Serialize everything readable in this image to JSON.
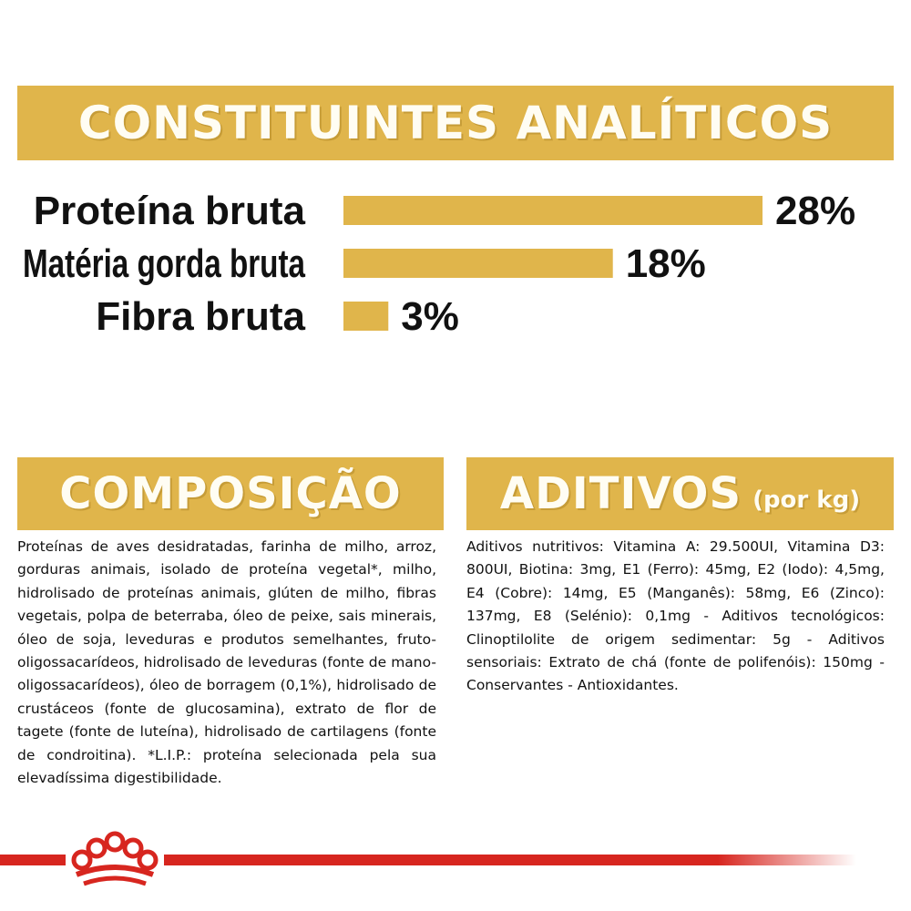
{
  "analytical": {
    "title": "CONSTITUINTES ANALÍTICOS"
  },
  "chart_data": {
    "type": "bar",
    "orientation": "horizontal",
    "categories": [
      "Proteína bruta",
      "Matéria gorda bruta",
      "Fibra bruta"
    ],
    "values": [
      28,
      18,
      3
    ],
    "value_labels": [
      "28%",
      "18%",
      "3%"
    ],
    "unit": "%",
    "xlim": [
      0,
      28
    ],
    "grid": false,
    "bar_color": "#e0b54b"
  },
  "composition": {
    "title": "COMPOSIÇÃO",
    "text": "Proteínas de aves desidratadas, farinha de milho, arroz, gorduras animais, isolado de proteína vegetal*, milho, hidrolisado de proteínas animais, glúten de milho, fibras vegetais, polpa de beterraba, óleo de peixe, sais minerais, óleo de soja, leveduras e produtos semelhantes, fruto-oligossacarídeos, hidrolisado de leveduras (fonte de mano-oligossacarídeos), óleo de borragem (0,1%), hidrolisado de crustáceos (fonte de glucosamina), extrato de flor de tagete (fonte de luteína), hidrolisado de cartilagens (fonte de condroitina). *L.I.P.: proteína selecionada pela sua elevadíssima digestibilidade."
  },
  "additives": {
    "title": "ADITIVOS",
    "subtitle": "(por kg)",
    "text": "Aditivos nutritivos: Vitamina A: 29.500UI, Vitamina D3: 800UI, Biotina: 3mg, E1 (Ferro): 45mg, E2 (Iodo): 4,5mg, E4 (Cobre): 14mg, E5 (Manganês): 58mg, E6 (Zinco): 137mg, E8 (Selénio): 0,1mg - Aditivos tecnológicos: Clinoptilolite de origem sedimentar: 5g - Aditivos sensoriais: Extrato de chá (fonte de polifenóis): 150mg - Conservantes - Antioxidantes."
  },
  "footer": {
    "logo_icon": "royal-canin-crown-icon",
    "stripe_color": "#d7261f"
  },
  "colors": {
    "accent": "#e0b54b",
    "text": "#111111",
    "brand_red": "#d7261f"
  }
}
